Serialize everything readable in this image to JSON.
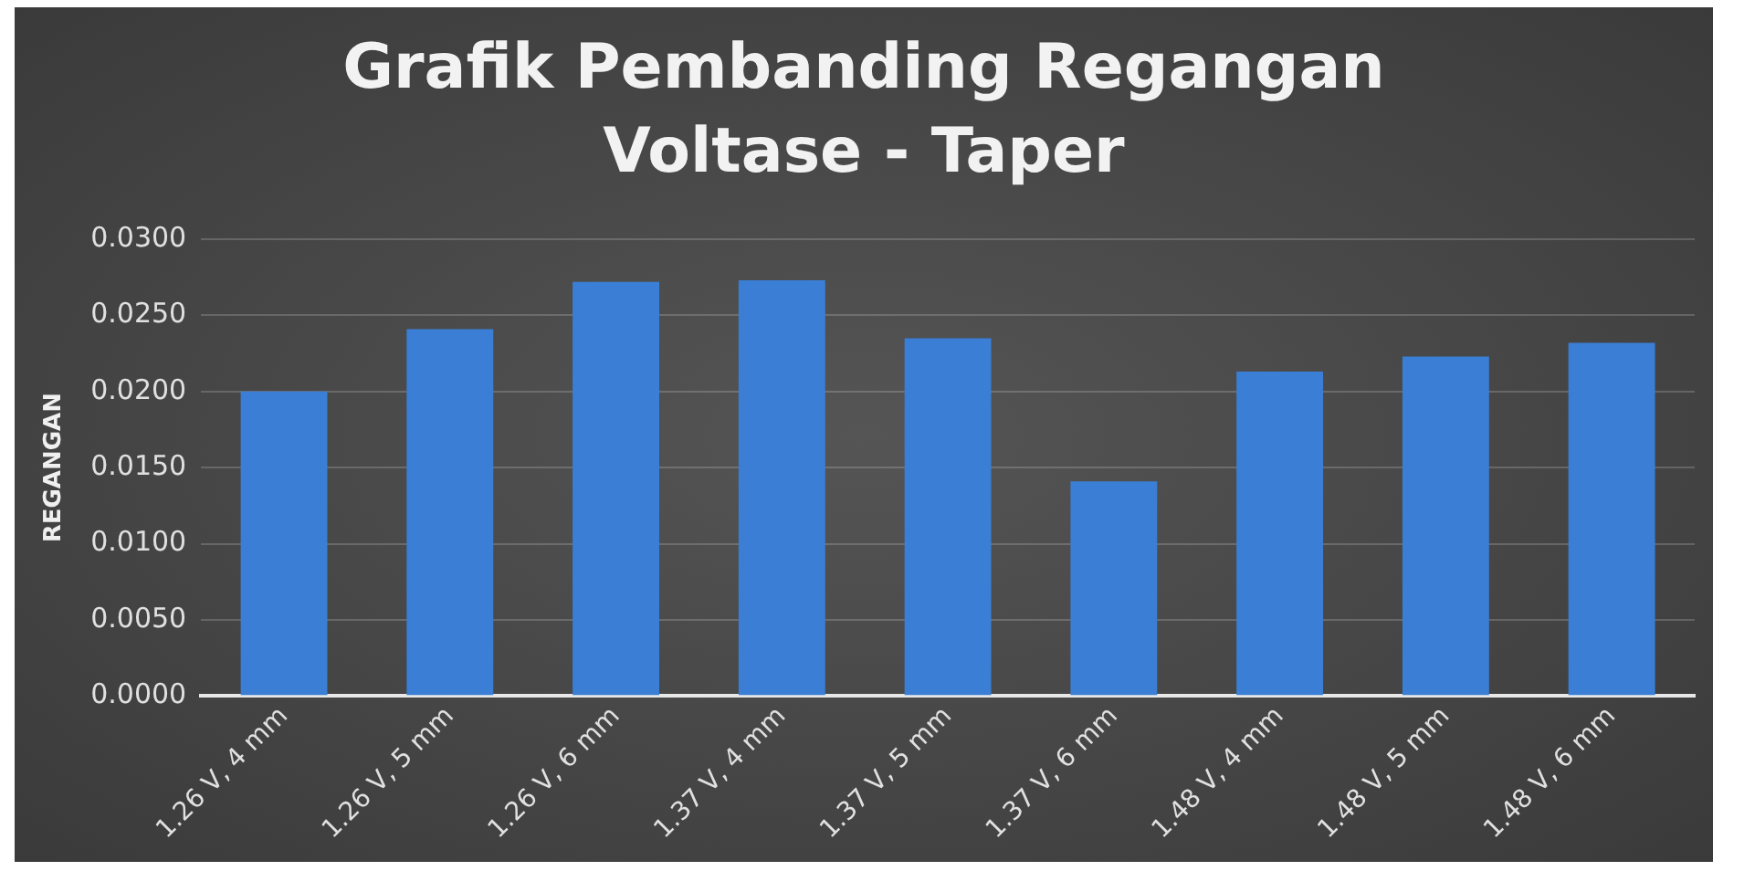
{
  "chart_data": {
    "type": "bar",
    "title": "Grafik Pembanding Regangan Voltase - Taper",
    "ylabel": "REGANGAN",
    "categories": [
      "1.26 V, 4 mm",
      "1.26 V, 5 mm",
      "1.26 V, 6 mm",
      "1.37 V, 4 mm",
      "1.37 V, 5 mm",
      "1.37 V, 6 mm",
      "1.48 V, 4 mm",
      "1.48 V, 5 mm",
      "1.48 V, 6 mm"
    ],
    "values": [
      0.02,
      0.0241,
      0.0272,
      0.0273,
      0.0235,
      0.0141,
      0.0213,
      0.0223,
      0.0232
    ],
    "color": "#3a7fd5",
    "ylim": [
      0,
      0.03
    ],
    "yticks": [
      {
        "value": 0,
        "label": "0.0000"
      },
      {
        "value": 0.005,
        "label": "0.0050"
      },
      {
        "value": 0.01,
        "label": "0.0100"
      },
      {
        "value": 0.015,
        "label": "0.0150"
      },
      {
        "value": 0.02,
        "label": "0.0200"
      },
      {
        "value": 0.025,
        "label": "0.0250"
      },
      {
        "value": 0.03,
        "label": "0.0300"
      }
    ],
    "grid": "y"
  }
}
